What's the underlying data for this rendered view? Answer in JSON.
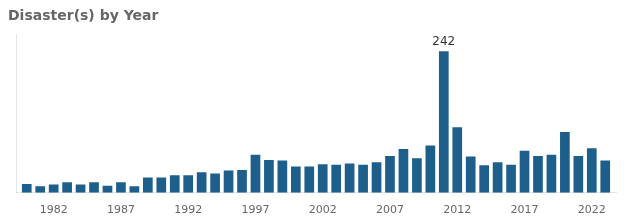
{
  "chart_data": {
    "type": "bar",
    "title": "Disaster(s) by Year",
    "x": [
      1980,
      1981,
      1982,
      1983,
      1984,
      1985,
      1986,
      1987,
      1988,
      1989,
      1990,
      1991,
      1992,
      1993,
      1994,
      1995,
      1996,
      1997,
      1998,
      1999,
      2000,
      2001,
      2002,
      2003,
      2004,
      2005,
      2006,
      2007,
      2008,
      2009,
      2010,
      2011,
      2012,
      2013,
      2014,
      2015,
      2016,
      2017,
      2018,
      2019,
      2020,
      2021,
      2022,
      2023
    ],
    "values": [
      15,
      11,
      14,
      18,
      14,
      18,
      12,
      18,
      11,
      26,
      26,
      30,
      30,
      35,
      33,
      38,
      39,
      65,
      56,
      55,
      45,
      45,
      49,
      48,
      50,
      48,
      52,
      63,
      75,
      59,
      81,
      242,
      112,
      62,
      47,
      52,
      48,
      72,
      63,
      65,
      104,
      63,
      76,
      55
    ],
    "color": "#1d5f8a",
    "xlim": [
      1979.2,
      2023.8
    ],
    "xticks": [
      1982,
      1987,
      1992,
      1997,
      2002,
      2007,
      2012,
      2017,
      2022
    ],
    "ylim": [
      0,
      270
    ],
    "grid": false,
    "tick_labels": "x",
    "annotations": [
      {
        "x": 2011,
        "y": 242,
        "text": "242"
      }
    ]
  }
}
